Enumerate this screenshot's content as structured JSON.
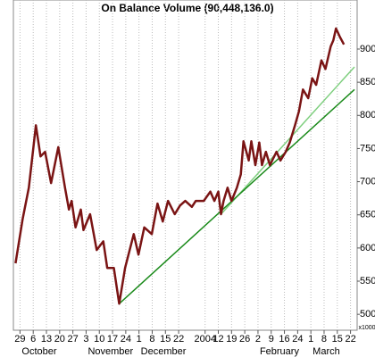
{
  "chart_data": {
    "type": "line",
    "title": "On Balance Volume (90,448,136.0)",
    "y_axis_unit": "x1000",
    "xlim": [
      -0.5,
      25.5
    ],
    "ylim": [
      476,
      974
    ],
    "yticks": [
      500,
      550,
      600,
      650,
      700,
      750,
      800,
      850,
      900
    ],
    "xticks": [
      {
        "value": 0,
        "label": "29"
      },
      {
        "value": 1,
        "label": "6"
      },
      {
        "value": 2,
        "label": "13"
      },
      {
        "value": 3,
        "label": "20"
      },
      {
        "value": 4,
        "label": "27"
      },
      {
        "value": 5,
        "label": "3"
      },
      {
        "value": 6,
        "label": "10"
      },
      {
        "value": 7,
        "label": "17"
      },
      {
        "value": 8,
        "label": "24"
      },
      {
        "value": 9,
        "label": "1"
      },
      {
        "value": 10,
        "label": "8"
      },
      {
        "value": 11,
        "label": "15"
      },
      {
        "value": 12,
        "label": "22"
      },
      {
        "value": 14,
        "label": "2004"
      },
      {
        "value": 15,
        "label": "12"
      },
      {
        "value": 16,
        "label": "19"
      },
      {
        "value": 17,
        "label": "26"
      },
      {
        "value": 18,
        "label": "2"
      },
      {
        "value": 19,
        "label": "9"
      },
      {
        "value": 20,
        "label": "16"
      },
      {
        "value": 21,
        "label": "24"
      },
      {
        "value": 22,
        "label": "1"
      },
      {
        "value": 23,
        "label": "8"
      },
      {
        "value": 24,
        "label": "15"
      },
      {
        "value": 25,
        "label": "22"
      }
    ],
    "month_labels": [
      {
        "value": 0,
        "label": "October"
      },
      {
        "value": 5,
        "label": "November"
      },
      {
        "value": 9,
        "label": "December"
      },
      {
        "value": 18,
        "label": "February"
      },
      {
        "value": 22,
        "label": "March"
      }
    ],
    "grid": true,
    "series": [
      {
        "color": "#7a1414",
        "x": [
          -0.34,
          0.2,
          0.67,
          1.2,
          1.55,
          1.9,
          2.35,
          2.9,
          3.4,
          3.7,
          3.9,
          4.2,
          4.6,
          4.8,
          5.3,
          5.8,
          6.3,
          6.6,
          7.1,
          7.5,
          7.95,
          8.6,
          8.96,
          9.4,
          9.97,
          10.4,
          10.8,
          11.2,
          11.7,
          12.1,
          12.5,
          13.0,
          13.3,
          13.9,
          14.4,
          14.7,
          15.0,
          15.2,
          15.4,
          15.7,
          16.0,
          16.4,
          16.7,
          16.9,
          17.3,
          17.5,
          17.8,
          18.1,
          18.3,
          18.6,
          18.9,
          19.4,
          19.7,
          20.1,
          20.4,
          20.8,
          21.1,
          21.4,
          21.8,
          22.1,
          22.4,
          22.8,
          23.1,
          23.5,
          23.7,
          23.9,
          24.2,
          24.5
        ],
        "values": [
          577,
          644,
          691,
          785,
          738,
          745,
          698,
          752,
          691,
          658,
          671,
          631,
          658,
          627,
          651,
          597,
          610,
          570,
          570,
          516,
          570,
          621,
          590,
          631,
          621,
          667,
          640,
          671,
          651,
          664,
          671,
          662,
          671,
          671,
          685,
          671,
          685,
          651,
          671,
          691,
          671,
          691,
          711,
          761,
          732,
          761,
          725,
          759,
          725,
          745,
          725,
          745,
          732,
          745,
          759,
          785,
          806,
          839,
          826,
          856,
          846,
          883,
          870,
          904,
          913,
          931,
          918,
          907
        ]
      },
      {
        "color": "#1a8a1a",
        "x": [
          7.5,
          25.3
        ],
        "values": [
          516,
          839
        ]
      },
      {
        "color": "#7fcf7f",
        "x": [
          15.2,
          25.3
        ],
        "values": [
          651,
          873
        ]
      }
    ]
  }
}
